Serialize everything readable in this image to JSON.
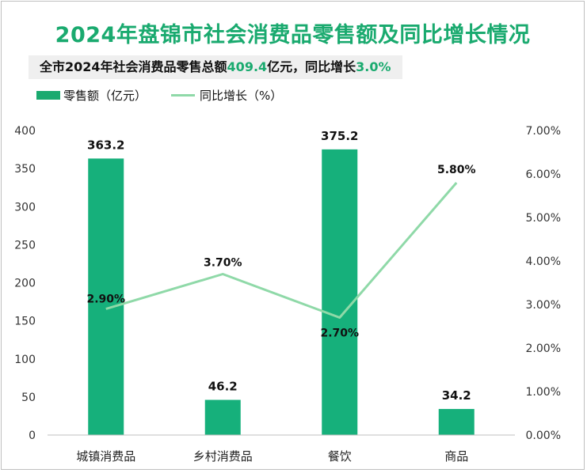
{
  "header": {
    "title": "2024年盘锦市社会消费品零售额及同比增长情况",
    "subtitle_prefix": "全市2024年社会消费品零售总额",
    "subtitle_value": "409.4",
    "subtitle_middle": "亿元，同比增长",
    "subtitle_growth": "3.0%"
  },
  "colors": {
    "accent": "#1aaa6f",
    "bar": "#16b07b",
    "line": "#8fd9a8"
  },
  "chart_data": {
    "type": "bar",
    "categories": [
      "城镇消费品",
      "乡村消费品",
      "餐饮",
      "商品"
    ],
    "series": [
      {
        "name": "零售额（亿元）",
        "type": "bar",
        "axis": "left",
        "values": [
          363.2,
          46.2,
          375.2,
          34.2
        ],
        "labels": [
          "363.2",
          "46.2",
          "375.2",
          "34.2"
        ]
      },
      {
        "name": "同比增长（%）",
        "type": "line",
        "axis": "right",
        "values": [
          2.9,
          3.7,
          2.7,
          5.8
        ],
        "labels": [
          "2.90%",
          "3.70%",
          "2.70%",
          "5.80%"
        ]
      }
    ],
    "y_left": {
      "lim": [
        0,
        400
      ],
      "ticks": [
        "0",
        "50",
        "100",
        "150",
        "200",
        "250",
        "300",
        "350",
        "400"
      ]
    },
    "y_right": {
      "lim": [
        0,
        7
      ],
      "ticks": [
        "0.00%",
        "1.00%",
        "2.00%",
        "3.00%",
        "4.00%",
        "5.00%",
        "6.00%",
        "7.00%"
      ]
    },
    "grid": false,
    "legend": "top-left"
  }
}
